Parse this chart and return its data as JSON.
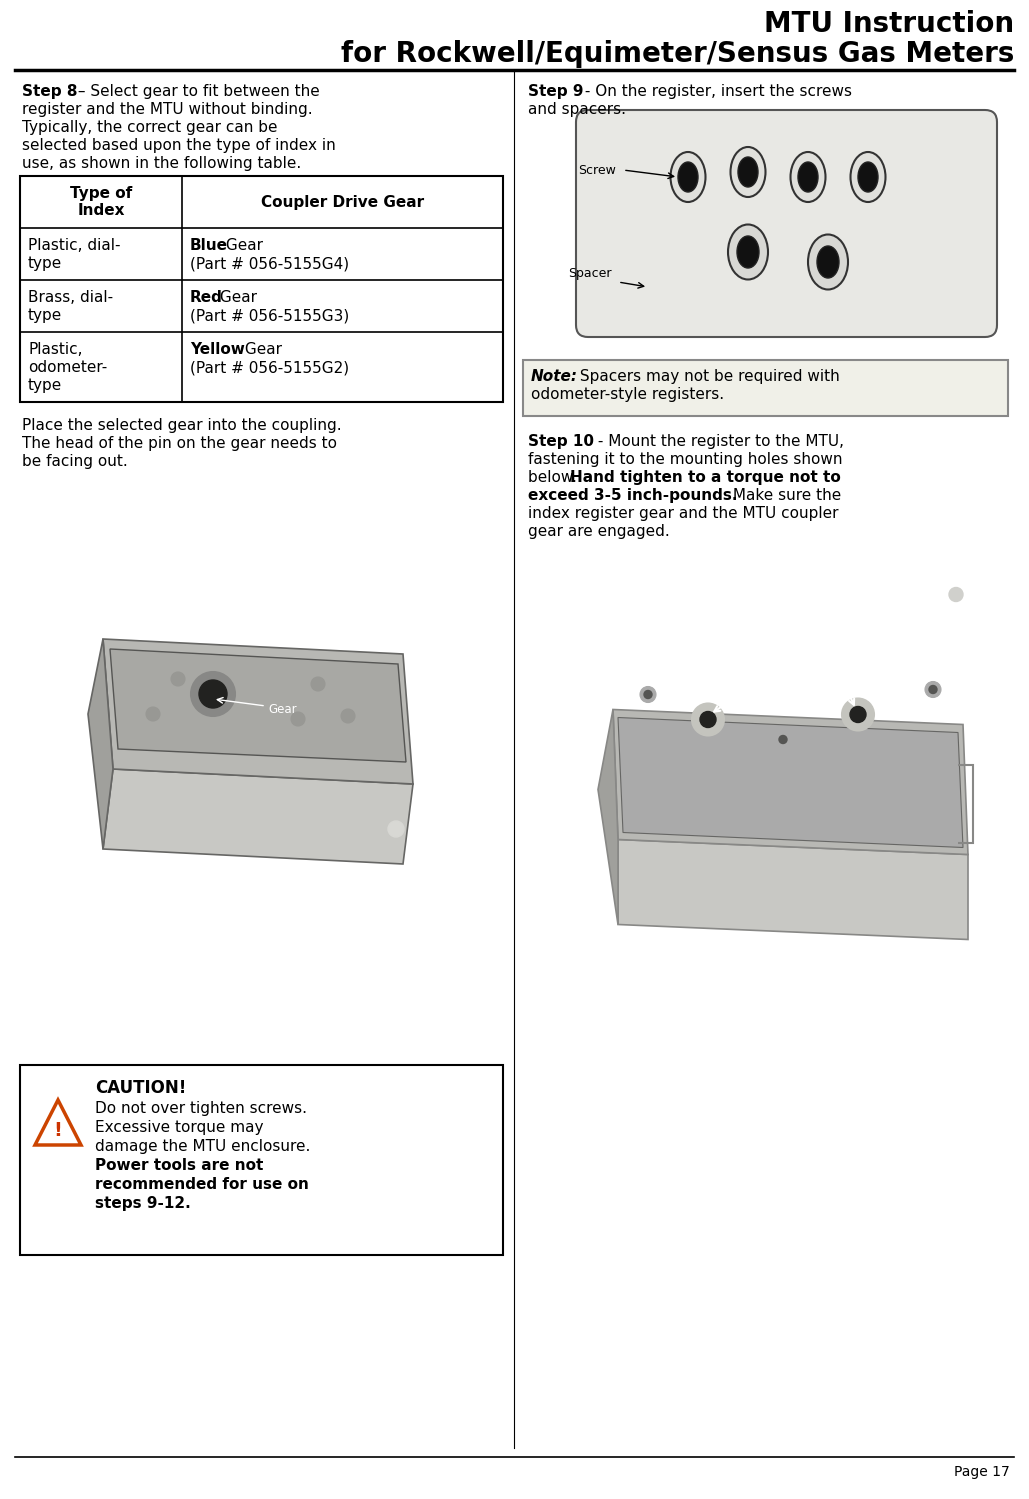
{
  "title_line1": "MTU Instruction",
  "title_line2": "for Rockwell/Equimeter/Sensus Gas Meters",
  "page_number": "Page 17",
  "background_color": "#ffffff",
  "step8_bold": "Step 8",
  "step8_rest_line1": " – Select gear to fit between the",
  "step8_lines": [
    "register and the MTU without binding.",
    "Typically, the correct gear can be",
    "selected based upon the type of index in",
    "use, as shown in the following table."
  ],
  "table_header_col1": "Type of\nIndex",
  "table_header_col2": "Coupler Drive Gear",
  "table_rows": [
    {
      "col1": "Plastic, dial-\ntype",
      "col2_bold": "Blue",
      "col2_rest_line1": " Gear",
      "col2_line2": "(Part # 056-5155G4)"
    },
    {
      "col1": "Brass, dial-\ntype",
      "col2_bold": "Red",
      "col2_rest_line1": " Gear",
      "col2_line2": "(Part # 056-5155G3)"
    },
    {
      "col1": "Plastic,\nodometer-\ntype",
      "col2_bold": "Yellow",
      "col2_rest_line1": " Gear",
      "col2_line2": "(Part # 056-5155G2)"
    }
  ],
  "step8_para2_lines": [
    "Place the selected gear into the coupling.",
    "The head of the pin on the gear needs to",
    "be facing out."
  ],
  "caution_title": "CAUTION!",
  "caution_normal_lines": [
    "Do not over tighten screws.",
    "Excessive torque may",
    "damage the MTU enclosure."
  ],
  "caution_bold_lines": [
    "Power tools are not",
    "recommended for use on",
    "steps 9-12."
  ],
  "step9_bold": "Step 9",
  "step9_rest": " - On the register, insert the screws",
  "step9_line2": "and spacers.",
  "note_bold": "Note:",
  "note_rest": " Spacers may not be required with",
  "note_line2": "odometer-style registers.",
  "step10_bold": "Step 10",
  "step10_rest": " - Mount the register to the MTU,",
  "step10_line2": "fastening it to the mounting holes shown",
  "step10_line3_normal": "below.  ",
  "step10_line3_bold": "Hand tighten to a torque not to",
  "step10_line4_bold": "exceed 3-5 inch-pounds.",
  "step10_line4_normal": " Make sure the",
  "step10_line5": "index register gear and the MTU coupler",
  "step10_line6": "gear are engaged."
}
